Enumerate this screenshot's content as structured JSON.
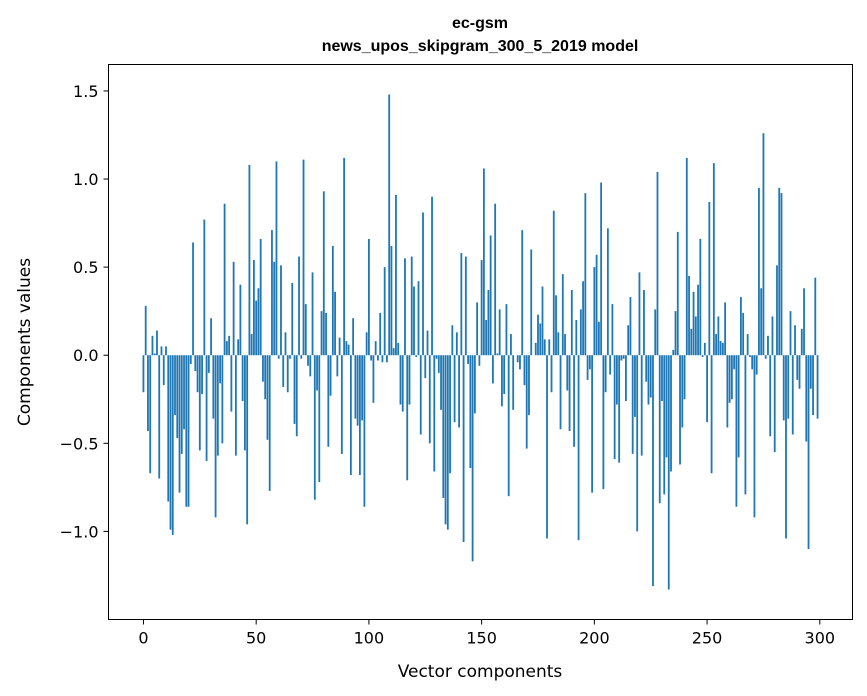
{
  "chart_data": {
    "type": "bar",
    "title": "ec-gsm",
    "subtitle": "news_upos_skipgram_300_5_2019 model",
    "xlabel": "Vector components",
    "ylabel": "Components values",
    "xlim": [
      -15.5,
      314.5
    ],
    "ylim": [
      -1.5,
      1.65
    ],
    "xticks": [
      0,
      50,
      100,
      150,
      200,
      250,
      300
    ],
    "xtick_labels": [
      "0",
      "50",
      "100",
      "150",
      "200",
      "250",
      "300"
    ],
    "yticks": [
      -1.0,
      -0.5,
      0.0,
      0.5,
      1.0,
      1.5
    ],
    "ytick_labels": [
      "−1.0",
      "−0.5",
      "0.0",
      "0.5",
      "1.0",
      "1.5"
    ],
    "grid": false,
    "bar_width": 0.8,
    "color": "#1f77b4",
    "values": [
      -0.21,
      0.28,
      -0.43,
      -0.67,
      0.11,
      0.01,
      0.14,
      -0.7,
      0.05,
      -0.17,
      0.05,
      -0.83,
      -0.99,
      -1.02,
      -0.34,
      -0.47,
      -0.78,
      -0.56,
      -0.42,
      -0.86,
      -0.86,
      -0.05,
      0.64,
      -0.09,
      -0.21,
      -0.54,
      -0.22,
      0.77,
      -0.6,
      -0.1,
      0.21,
      -0.36,
      -0.92,
      -0.57,
      -0.16,
      -0.5,
      0.86,
      0.08,
      0.11,
      -0.32,
      0.53,
      -0.57,
      0.09,
      0.4,
      -0.26,
      -0.54,
      -0.96,
      1.08,
      0.12,
      0.54,
      0.31,
      0.38,
      0.66,
      -0.15,
      -0.25,
      -0.48,
      -0.77,
      0.71,
      0.53,
      1.1,
      -0.02,
      0.51,
      -0.18,
      0.13,
      -0.21,
      -0.02,
      0.41,
      -0.39,
      -0.46,
      0.56,
      -0.02,
      1.11,
      0.29,
      -0.06,
      -0.12,
      0.47,
      -0.82,
      -0.2,
      -0.72,
      0.25,
      0.93,
      0.24,
      -0.52,
      -0.23,
      0.62,
      0.36,
      -0.12,
      0.1,
      -0.56,
      1.12,
      0.08,
      0.06,
      -0.68,
      0.21,
      -0.36,
      -0.4,
      -0.68,
      -0.37,
      -0.86,
      0.13,
      0.66,
      -0.03,
      -0.27,
      0.08,
      -0.03,
      0.24,
      -0.04,
      0.5,
      -0.04,
      1.48,
      0.62,
      0.04,
      0.91,
      0.07,
      -0.28,
      -0.32,
      0.55,
      -0.71,
      -0.28,
      0.56,
      0.39,
      -0.01,
      0.42,
      -0.45,
      0.81,
      -0.13,
      0.14,
      -0.5,
      0.9,
      -0.66,
      -0.02,
      -0.1,
      -0.31,
      -0.81,
      -0.96,
      -0.99,
      -0.67,
      0.17,
      -0.38,
      0.13,
      -0.41,
      0.58,
      -1.06,
      0.56,
      -0.05,
      -0.64,
      -1.17,
      -0.33,
      0.3,
      -0.06,
      0.54,
      1.06,
      0.2,
      0.37,
      0.68,
      -0.16,
      0.86,
      0.01,
      0.26,
      -0.29,
      -0.22,
      0.29,
      -0.8,
      0.12,
      -0.31,
      0.0,
      -0.04,
      -0.08,
      0.71,
      -0.17,
      -0.53,
      -0.34,
      0.6,
      0.0,
      0.07,
      0.23,
      0.18,
      0.39,
      0.09,
      -1.04,
      0.09,
      -0.21,
      0.82,
      0.34,
      0.13,
      -0.42,
      0.46,
      0.12,
      -0.2,
      -0.43,
      0.37,
      -0.52,
      0.2,
      -1.05,
      0.26,
      0.42,
      0.92,
      -0.14,
      -0.08,
      -0.78,
      0.5,
      0.57,
      0.19,
      0.98,
      -0.76,
      -0.21,
      0.72,
      -0.11,
      0.29,
      -0.59,
      -0.28,
      -0.61,
      -0.03,
      -0.02,
      -0.26,
      0.17,
      0.33,
      -0.56,
      -0.35,
      -1.0,
      0.47,
      -0.57,
      0.37,
      -0.15,
      -0.28,
      -0.24,
      -1.31,
      0.26,
      1.04,
      -0.84,
      -0.26,
      -0.79,
      -0.58,
      -1.33,
      -0.66,
      0.03,
      0.25,
      0.7,
      -0.62,
      -0.41,
      -0.25,
      1.12,
      0.45,
      0.15,
      0.36,
      0.22,
      0.4,
      0.66,
      -0.01,
      0.07,
      -0.38,
      0.87,
      -0.67,
      1.09,
      0.12,
      0.22,
      0.08,
      0.07,
      0.3,
      -0.41,
      -0.27,
      -0.25,
      -0.08,
      -0.86,
      -0.58,
      0.33,
      0.24,
      -0.79,
      0.12,
      -0.01,
      -0.08,
      -0.92,
      -0.11,
      0.95,
      0.38,
      1.26,
      -0.02,
      0.11,
      -0.46,
      0.22,
      -0.55,
      0.51,
      0.95,
      0.92,
      -0.37,
      -1.04,
      -0.36,
      0.25,
      -0.45,
      0.17,
      -0.14,
      -0.19,
      0.15,
      0.38,
      -0.49,
      -1.1,
      -0.19,
      -0.34,
      0.44,
      -0.36
    ]
  }
}
